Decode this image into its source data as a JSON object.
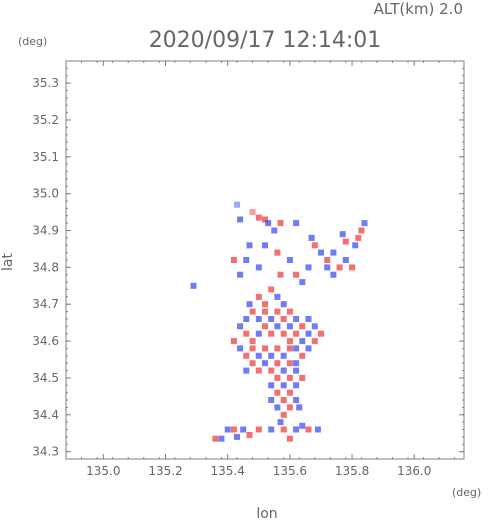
{
  "chart_data": {
    "type": "heatmap",
    "title": "2020/09/17 12:14:01",
    "subtitle": "ALT(km) 2.0",
    "xlabel": "lon",
    "ylabel": "lat",
    "x_unit": "(deg)",
    "y_unit": "(deg)",
    "xlim": [
      134.88,
      136.16
    ],
    "ylim": [
      34.28,
      35.36
    ],
    "x_ticks": [
      135.0,
      135.2,
      135.4,
      135.6,
      135.8,
      136.0
    ],
    "x_tick_labels": [
      "135.0",
      "135.2",
      "135.4",
      "135.6",
      "135.8",
      "136.0"
    ],
    "y_ticks": [
      34.3,
      34.4,
      34.5,
      34.6,
      34.7,
      34.8,
      34.9,
      35.0,
      35.1,
      35.2,
      35.3
    ],
    "y_tick_labels": [
      "34.3",
      "34.4",
      "34.5",
      "34.6",
      "34.7",
      "34.8",
      "34.9",
      "35.0",
      "35.1",
      "35.2",
      "35.3"
    ],
    "grid": false,
    "colors": {
      "positive": "#ee3333",
      "negative": "#3344ee",
      "axis": "#7f7f7f",
      "text": "#666666"
    },
    "cells": [
      [
        135.52,
        34.93,
        1
      ],
      [
        135.5,
        34.935,
        1
      ],
      [
        135.53,
        34.92,
        -1
      ],
      [
        135.44,
        34.93,
        -1
      ],
      [
        135.48,
        34.95,
        0.5
      ],
      [
        135.43,
        34.97,
        -0.5
      ],
      [
        135.57,
        34.92,
        1
      ],
      [
        135.55,
        34.9,
        -1
      ],
      [
        135.62,
        34.92,
        -1
      ],
      [
        135.84,
        34.92,
        -1
      ],
      [
        135.83,
        34.9,
        1
      ],
      [
        135.82,
        34.88,
        1
      ],
      [
        135.81,
        34.86,
        -1
      ],
      [
        135.77,
        34.89,
        -1
      ],
      [
        135.78,
        34.87,
        1
      ],
      [
        135.67,
        34.88,
        -1
      ],
      [
        135.68,
        34.86,
        1
      ],
      [
        135.7,
        34.84,
        -1
      ],
      [
        135.72,
        34.82,
        1
      ],
      [
        135.74,
        34.84,
        -1
      ],
      [
        135.76,
        34.8,
        1
      ],
      [
        135.74,
        34.78,
        -1
      ],
      [
        135.72,
        34.8,
        -1
      ],
      [
        135.78,
        34.82,
        -1
      ],
      [
        135.8,
        34.8,
        1
      ],
      [
        135.47,
        34.86,
        -1
      ],
      [
        135.46,
        34.82,
        -1
      ],
      [
        135.52,
        34.86,
        -1
      ],
      [
        135.5,
        34.8,
        -1
      ],
      [
        135.56,
        34.84,
        1
      ],
      [
        135.6,
        34.82,
        -1
      ],
      [
        135.62,
        34.78,
        1
      ],
      [
        135.64,
        34.76,
        -1
      ],
      [
        135.66,
        34.8,
        -1
      ],
      [
        135.57,
        34.78,
        1
      ],
      [
        135.29,
        34.75,
        -1
      ],
      [
        135.42,
        34.82,
        1
      ],
      [
        135.44,
        34.78,
        -1
      ],
      [
        135.54,
        34.74,
        1
      ],
      [
        135.56,
        34.72,
        -1
      ],
      [
        135.5,
        34.72,
        1
      ],
      [
        135.47,
        34.7,
        -1
      ],
      [
        135.52,
        34.7,
        1
      ],
      [
        135.58,
        34.7,
        -1
      ],
      [
        135.6,
        34.68,
        1
      ],
      [
        135.62,
        34.66,
        -1
      ],
      [
        135.64,
        34.64,
        1
      ],
      [
        135.66,
        34.66,
        -1
      ],
      [
        135.68,
        34.64,
        -1
      ],
      [
        135.7,
        34.62,
        1
      ],
      [
        135.48,
        34.68,
        1
      ],
      [
        135.46,
        34.66,
        -1
      ],
      [
        135.5,
        34.66,
        -1
      ],
      [
        135.52,
        34.68,
        1
      ],
      [
        135.54,
        34.66,
        -1
      ],
      [
        135.56,
        34.68,
        1
      ],
      [
        135.58,
        34.66,
        1
      ],
      [
        135.6,
        34.64,
        -1
      ],
      [
        135.62,
        34.62,
        1
      ],
      [
        135.64,
        34.6,
        -1
      ],
      [
        135.44,
        34.64,
        -1
      ],
      [
        135.46,
        34.62,
        1
      ],
      [
        135.48,
        34.6,
        1
      ],
      [
        135.5,
        34.62,
        -1
      ],
      [
        135.52,
        34.64,
        1
      ],
      [
        135.54,
        34.62,
        1
      ],
      [
        135.56,
        34.64,
        -1
      ],
      [
        135.58,
        34.62,
        1
      ],
      [
        135.6,
        34.6,
        1
      ],
      [
        135.62,
        34.58,
        -1
      ],
      [
        135.66,
        34.62,
        -1
      ],
      [
        135.68,
        34.6,
        1
      ],
      [
        135.42,
        34.6,
        1
      ],
      [
        135.44,
        34.58,
        -1
      ],
      [
        135.46,
        34.56,
        1
      ],
      [
        135.48,
        34.58,
        1
      ],
      [
        135.5,
        34.56,
        -1
      ],
      [
        135.52,
        34.58,
        1
      ],
      [
        135.54,
        34.56,
        -1
      ],
      [
        135.56,
        34.58,
        1
      ],
      [
        135.58,
        34.56,
        -1
      ],
      [
        135.6,
        34.58,
        1
      ],
      [
        135.62,
        34.54,
        -1
      ],
      [
        135.64,
        34.56,
        1
      ],
      [
        135.66,
        34.58,
        -1
      ],
      [
        135.46,
        34.52,
        -1
      ],
      [
        135.48,
        34.54,
        1
      ],
      [
        135.5,
        34.52,
        1
      ],
      [
        135.52,
        34.54,
        -1
      ],
      [
        135.54,
        34.52,
        1
      ],
      [
        135.56,
        34.54,
        1
      ],
      [
        135.58,
        34.52,
        -1
      ],
      [
        135.6,
        34.54,
        1
      ],
      [
        135.62,
        34.52,
        -1
      ],
      [
        135.56,
        34.5,
        1
      ],
      [
        135.54,
        34.48,
        -1
      ],
      [
        135.56,
        34.46,
        1
      ],
      [
        135.58,
        34.48,
        -1
      ],
      [
        135.6,
        34.5,
        1
      ],
      [
        135.62,
        34.48,
        -1
      ],
      [
        135.64,
        34.5,
        1
      ],
      [
        135.58,
        34.44,
        1
      ],
      [
        135.56,
        34.42,
        -1
      ],
      [
        135.6,
        34.42,
        1
      ],
      [
        135.62,
        34.44,
        -1
      ],
      [
        135.58,
        34.4,
        1
      ],
      [
        135.54,
        34.44,
        -1
      ],
      [
        135.6,
        34.46,
        1
      ],
      [
        135.63,
        34.42,
        -1
      ],
      [
        135.57,
        34.38,
        -1
      ],
      [
        135.4,
        34.36,
        -1
      ],
      [
        135.42,
        34.36,
        1
      ],
      [
        135.45,
        34.36,
        -1
      ],
      [
        135.5,
        34.36,
        1
      ],
      [
        135.54,
        34.36,
        -1
      ],
      [
        135.58,
        34.36,
        1
      ],
      [
        135.62,
        34.36,
        -1
      ],
      [
        135.66,
        34.36,
        1
      ],
      [
        135.69,
        34.36,
        -1
      ],
      [
        135.6,
        34.335,
        1
      ],
      [
        135.36,
        34.335,
        1
      ],
      [
        135.38,
        34.335,
        -1
      ],
      [
        135.43,
        34.34,
        -1
      ],
      [
        135.47,
        34.345,
        1
      ],
      [
        135.64,
        34.37,
        -1
      ]
    ]
  }
}
